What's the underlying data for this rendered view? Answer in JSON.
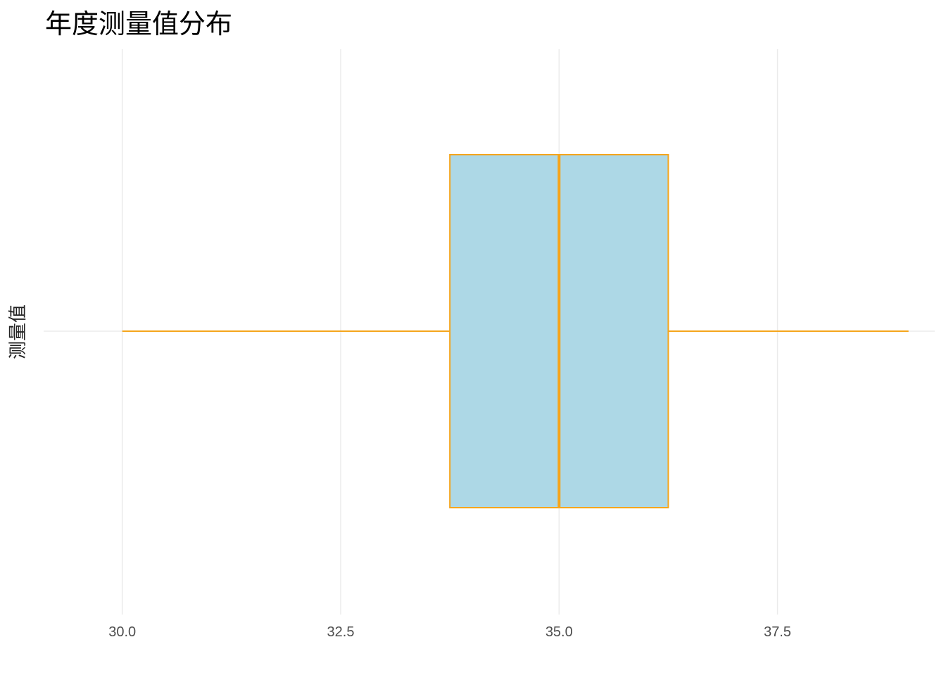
{
  "chart_data": {
    "type": "boxplot",
    "title": "年度测量值分布",
    "xlabel": "",
    "ylabel": "测量值",
    "orientation": "horizontal",
    "xlim": [
      29.1,
      39.3
    ],
    "x_ticks": [
      30.0,
      32.5,
      35.0,
      37.5
    ],
    "x_tick_labels": [
      "30.0",
      "32.5",
      "35.0",
      "37.5"
    ],
    "grid": true,
    "box": {
      "min": 30.0,
      "q1": 33.75,
      "median": 35.0,
      "q3": 36.25,
      "max": 39.0
    },
    "colors": {
      "box_fill": "#add8e6",
      "box_stroke": "#f5a51c",
      "grid": "#ebebeb"
    }
  }
}
